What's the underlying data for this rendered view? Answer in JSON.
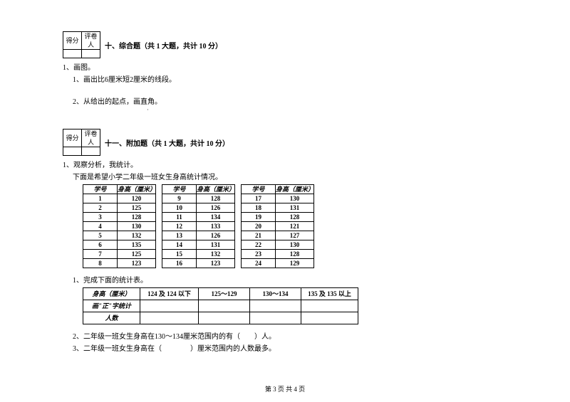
{
  "scorebox": {
    "score": "得分",
    "grader": "评卷人"
  },
  "section10": {
    "title": "十、综合题（共 1 大题，共计 10 分）",
    "q1": "1、画图。",
    "q1a": "1、画出比6厘米短2厘米的线段。",
    "q1b": "2、从给出的起点，画直角。",
    "dot": "·"
  },
  "section11": {
    "title": "十一、附加题（共 1 大题，共计 10 分）",
    "q1": "1、观察分析，我统计。",
    "q1a": "下面是希望小学二年级一班女生身高统计情况。",
    "headers": {
      "id": "学号",
      "height": "身高（厘米）"
    },
    "cols": [
      [
        [
          "1",
          "120"
        ],
        [
          "2",
          "125"
        ],
        [
          "3",
          "128"
        ],
        [
          "4",
          "130"
        ],
        [
          "5",
          "132"
        ],
        [
          "6",
          "135"
        ],
        [
          "7",
          "125"
        ],
        [
          "8",
          "123"
        ]
      ],
      [
        [
          "9",
          "128"
        ],
        [
          "10",
          "126"
        ],
        [
          "11",
          "134"
        ],
        [
          "12",
          "133"
        ],
        [
          "13",
          "126"
        ],
        [
          "14",
          "131"
        ],
        [
          "15",
          "132"
        ],
        [
          "16",
          "123"
        ]
      ],
      [
        [
          "17",
          "130"
        ],
        [
          "18",
          "131"
        ],
        [
          "19",
          "128"
        ],
        [
          "20",
          "121"
        ],
        [
          "21",
          "127"
        ],
        [
          "22",
          "130"
        ],
        [
          "23",
          "128"
        ],
        [
          "24",
          "129"
        ]
      ]
    ],
    "sub1": "1、完成下面的统计表。",
    "summary": {
      "r0": [
        "身高（厘米）",
        "124 及 124 以下",
        "125～129",
        "130～134",
        "135 及 135 以上"
      ],
      "r1": [
        "画\"正\"字统计",
        "",
        "",
        "",
        ""
      ],
      "r2": [
        "人数",
        "",
        "",
        "",
        ""
      ]
    },
    "sub2": "2、二年级一班女生身高在130～134厘米范围内的有（　　）人。",
    "sub3": "3、二年级一班女生身高在（　　　　）厘米范围内的人数最多。"
  },
  "footer": "第 3 页 共 4 页"
}
